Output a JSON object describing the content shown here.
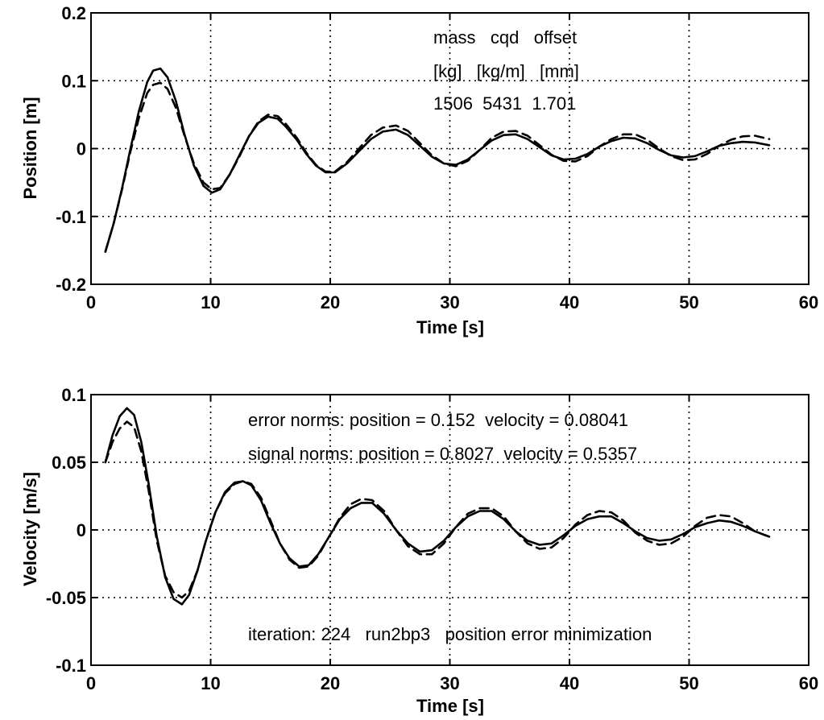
{
  "chart_data": [
    {
      "type": "line",
      "xlabel": "Time [s]",
      "ylabel": "Position [m]",
      "xlim": [
        0,
        60
      ],
      "ylim": [
        -0.2,
        0.2
      ],
      "xticks": [
        "0",
        "10",
        "20",
        "30",
        "40",
        "50",
        "60"
      ],
      "yticks": [
        "0.2",
        "0.1",
        "0",
        "-0.1",
        "-0.2"
      ],
      "grid": true,
      "annotations": [
        "mass   cqd   offset",
        "[kg]   [kg/m]   [mm]",
        "1506  5431  1.701"
      ],
      "series": [
        {
          "style": "solid",
          "x": [
            1.2,
            1.9,
            2.6,
            3.3,
            4.0,
            4.7,
            5.2,
            5.8,
            6.4,
            7.1,
            7.8,
            8.6,
            9.4,
            10.1,
            10.8,
            11.6,
            12.4,
            13.2,
            14.0,
            14.8,
            15.6,
            16.3,
            17.2,
            18.0,
            18.8,
            19.6,
            20.4,
            21.4,
            22.4,
            23.4,
            24.4,
            25.5,
            26.5,
            27.5,
            28.5,
            29.5,
            30.5,
            31.5,
            32.5,
            33.5,
            34.5,
            35.5,
            36.5,
            37.5,
            38.5,
            39.5,
            40.5,
            41.5,
            42.5,
            43.5,
            44.5,
            45.5,
            46.5,
            47.5,
            48.5,
            49.5,
            50.5,
            51.5,
            52.5,
            53.5,
            54.5,
            55.5,
            56.7
          ],
          "y": [
            -0.152,
            -0.11,
            -0.058,
            0.0,
            0.055,
            0.098,
            0.115,
            0.118,
            0.105,
            0.07,
            0.022,
            -0.025,
            -0.055,
            -0.065,
            -0.06,
            -0.038,
            -0.01,
            0.018,
            0.038,
            0.047,
            0.044,
            0.032,
            0.013,
            -0.008,
            -0.025,
            -0.035,
            -0.035,
            -0.022,
            -0.004,
            0.014,
            0.025,
            0.028,
            0.02,
            0.004,
            -0.012,
            -0.022,
            -0.024,
            -0.016,
            -0.002,
            0.012,
            0.02,
            0.021,
            0.014,
            0.002,
            -0.01,
            -0.016,
            -0.015,
            -0.008,
            0.003,
            0.011,
            0.016,
            0.015,
            0.008,
            -0.002,
            -0.01,
            -0.013,
            -0.011,
            -0.004,
            0.004,
            0.008,
            0.01,
            0.009,
            0.005
          ]
        },
        {
          "style": "dashed",
          "x": [
            1.2,
            1.9,
            2.6,
            3.3,
            4.0,
            4.7,
            5.2,
            5.8,
            6.4,
            7.1,
            7.8,
            8.6,
            9.4,
            10.1,
            10.8,
            11.6,
            12.4,
            13.2,
            14.0,
            14.8,
            15.6,
            16.3,
            17.2,
            18.0,
            18.8,
            19.6,
            20.4,
            21.4,
            22.4,
            23.4,
            24.4,
            25.5,
            26.5,
            27.5,
            28.5,
            29.5,
            30.5,
            31.5,
            32.5,
            33.5,
            34.5,
            35.5,
            36.5,
            37.5,
            38.5,
            39.5,
            40.5,
            41.5,
            42.5,
            43.5,
            44.5,
            45.5,
            46.5,
            47.5,
            48.5,
            49.5,
            50.5,
            51.5,
            52.5,
            53.5,
            54.5,
            55.5,
            56.7
          ],
          "y": [
            -0.152,
            -0.11,
            -0.06,
            -0.004,
            0.045,
            0.082,
            0.094,
            0.097,
            0.088,
            0.06,
            0.02,
            -0.022,
            -0.05,
            -0.06,
            -0.058,
            -0.038,
            -0.012,
            0.018,
            0.04,
            0.05,
            0.048,
            0.036,
            0.016,
            -0.006,
            -0.024,
            -0.034,
            -0.034,
            -0.02,
            0.0,
            0.02,
            0.031,
            0.034,
            0.026,
            0.008,
            -0.01,
            -0.022,
            -0.026,
            -0.018,
            -0.002,
            0.016,
            0.025,
            0.026,
            0.019,
            0.005,
            -0.009,
            -0.018,
            -0.019,
            -0.011,
            0.003,
            0.014,
            0.021,
            0.021,
            0.013,
            0.0,
            -0.011,
            -0.017,
            -0.016,
            -0.008,
            0.004,
            0.013,
            0.018,
            0.019,
            0.014
          ]
        }
      ]
    },
    {
      "type": "line",
      "xlabel": "Time [s]",
      "ylabel": "Velocity [m/s]",
      "xlim": [
        0,
        60
      ],
      "ylim": [
        -0.1,
        0.1
      ],
      "xticks": [
        "0",
        "10",
        "20",
        "30",
        "40",
        "50",
        "60"
      ],
      "yticks": [
        "0.1",
        "0.05",
        "0",
        "-0.05",
        "-0.1"
      ],
      "grid": true,
      "annotations": [
        "error norms: position = 0.152  velocity = 0.08041",
        "signal norms: position = 0.8027  velocity = 0.5357",
        "iteration: 224   run2bp3   position error minimization"
      ],
      "series": [
        {
          "style": "solid",
          "x": [
            1.2,
            1.8,
            2.4,
            3.0,
            3.6,
            4.2,
            4.8,
            5.5,
            6.2,
            6.9,
            7.6,
            8.2,
            8.9,
            9.6,
            10.4,
            11.2,
            12.0,
            12.7,
            13.4,
            14.2,
            15.0,
            15.8,
            16.6,
            17.4,
            18.2,
            19.0,
            19.9,
            20.8,
            21.7,
            22.6,
            23.5,
            24.5,
            25.5,
            26.5,
            27.5,
            28.5,
            29.5,
            30.5,
            31.5,
            32.5,
            33.5,
            34.5,
            35.5,
            36.5,
            37.5,
            38.5,
            39.5,
            40.5,
            41.5,
            42.5,
            43.5,
            44.5,
            45.5,
            46.5,
            47.5,
            48.5,
            49.5,
            50.5,
            51.5,
            52.5,
            53.5,
            54.5,
            55.5,
            56.7
          ],
          "y": [
            0.05,
            0.07,
            0.084,
            0.09,
            0.085,
            0.065,
            0.035,
            -0.005,
            -0.035,
            -0.051,
            -0.055,
            -0.048,
            -0.03,
            -0.008,
            0.013,
            0.028,
            0.035,
            0.036,
            0.033,
            0.022,
            0.005,
            -0.01,
            -0.021,
            -0.027,
            -0.026,
            -0.018,
            -0.005,
            0.008,
            0.016,
            0.02,
            0.02,
            0.012,
            0.0,
            -0.01,
            -0.016,
            -0.015,
            -0.008,
            0.002,
            0.01,
            0.014,
            0.014,
            0.008,
            -0.001,
            -0.008,
            -0.011,
            -0.01,
            -0.004,
            0.003,
            0.008,
            0.01,
            0.01,
            0.005,
            -0.001,
            -0.006,
            -0.008,
            -0.007,
            -0.003,
            0.002,
            0.005,
            0.007,
            0.006,
            0.003,
            -0.001,
            -0.005
          ]
        },
        {
          "style": "dashed",
          "x": [
            1.2,
            1.8,
            2.4,
            3.0,
            3.6,
            4.2,
            4.8,
            5.5,
            6.2,
            6.9,
            7.6,
            8.2,
            8.9,
            9.6,
            10.4,
            11.2,
            12.0,
            12.7,
            13.4,
            14.2,
            15.0,
            15.8,
            16.6,
            17.4,
            18.2,
            19.0,
            19.9,
            20.8,
            21.7,
            22.6,
            23.5,
            24.5,
            25.5,
            26.5,
            27.5,
            28.5,
            29.5,
            30.5,
            31.5,
            32.5,
            33.5,
            34.5,
            35.5,
            36.5,
            37.5,
            38.5,
            39.5,
            40.5,
            41.5,
            42.5,
            43.5,
            44.5,
            45.5,
            46.5,
            47.5,
            48.5,
            49.5,
            50.5,
            51.5,
            52.5,
            53.5,
            54.5,
            55.5,
            56.7
          ],
          "y": [
            0.05,
            0.065,
            0.075,
            0.08,
            0.076,
            0.058,
            0.03,
            -0.008,
            -0.034,
            -0.046,
            -0.05,
            -0.045,
            -0.03,
            -0.008,
            0.013,
            0.027,
            0.034,
            0.036,
            0.034,
            0.024,
            0.007,
            -0.01,
            -0.022,
            -0.028,
            -0.027,
            -0.019,
            -0.005,
            0.009,
            0.019,
            0.023,
            0.022,
            0.014,
            0.0,
            -0.012,
            -0.018,
            -0.018,
            -0.01,
            0.002,
            0.012,
            0.016,
            0.016,
            0.01,
            -0.001,
            -0.01,
            -0.014,
            -0.013,
            -0.006,
            0.004,
            0.011,
            0.014,
            0.013,
            0.007,
            -0.002,
            -0.008,
            -0.011,
            -0.01,
            -0.005,
            0.003,
            0.009,
            0.011,
            0.01,
            0.005,
            -0.001,
            -0.005
          ]
        }
      ]
    }
  ]
}
